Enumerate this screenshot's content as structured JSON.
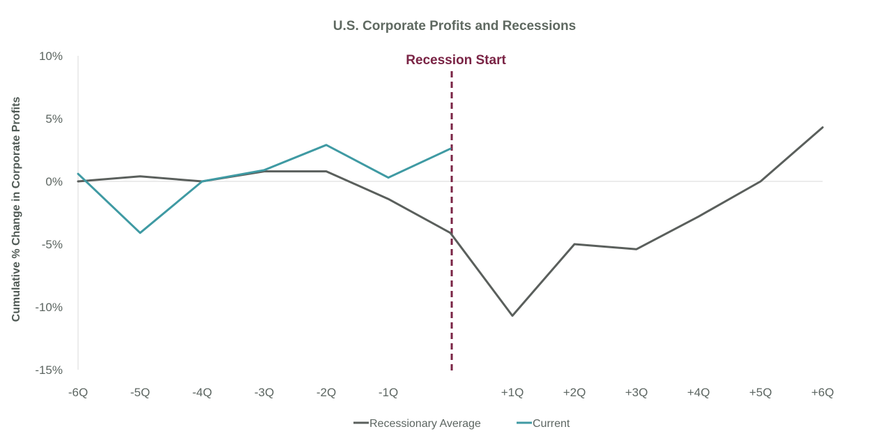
{
  "chart_data": {
    "type": "line",
    "title": "U.S. Corporate Profits and Recessions",
    "ylabel": "Cumulative % Change in Corporate Profits",
    "xlabel": "",
    "categories": [
      "-6Q",
      "-5Q",
      "-4Q",
      "-3Q",
      "-2Q",
      "-1Q",
      "0",
      "+1Q",
      "+2Q",
      "+3Q",
      "+4Q",
      "+5Q",
      "+6Q"
    ],
    "x_tick_labels": [
      "-6Q",
      "-5Q",
      "-4Q",
      "-3Q",
      "-2Q",
      "-1Q",
      "",
      "+1Q",
      "+2Q",
      "+3Q",
      "+4Q",
      "+5Q",
      "+6Q"
    ],
    "y_ticks": [
      10,
      5,
      0,
      -5,
      -10,
      -15
    ],
    "y_tick_labels": [
      "10%",
      "5%",
      "0%",
      "-5%",
      "-10%",
      "-15%"
    ],
    "ylim": [
      -15,
      10
    ],
    "grid": false,
    "legend_position": "bottom-center",
    "series": [
      {
        "name": "Recessionary Average",
        "color": "#5a5f5c",
        "values": [
          0.0,
          0.4,
          0.0,
          0.8,
          0.8,
          -1.4,
          -4.1,
          -10.7,
          -5.0,
          -5.4,
          -2.8,
          0.0,
          4.3
        ]
      },
      {
        "name": "Current",
        "color": "#3f9aa3",
        "values": [
          0.6,
          -4.1,
          0.0,
          0.9,
          2.9,
          0.3,
          2.6,
          null,
          null,
          null,
          null,
          null,
          null
        ]
      }
    ],
    "annotations": [
      {
        "text": "Recession Start",
        "x_category": "0",
        "style": "dashed-vertical-line",
        "color": "#7a2445"
      }
    ]
  }
}
